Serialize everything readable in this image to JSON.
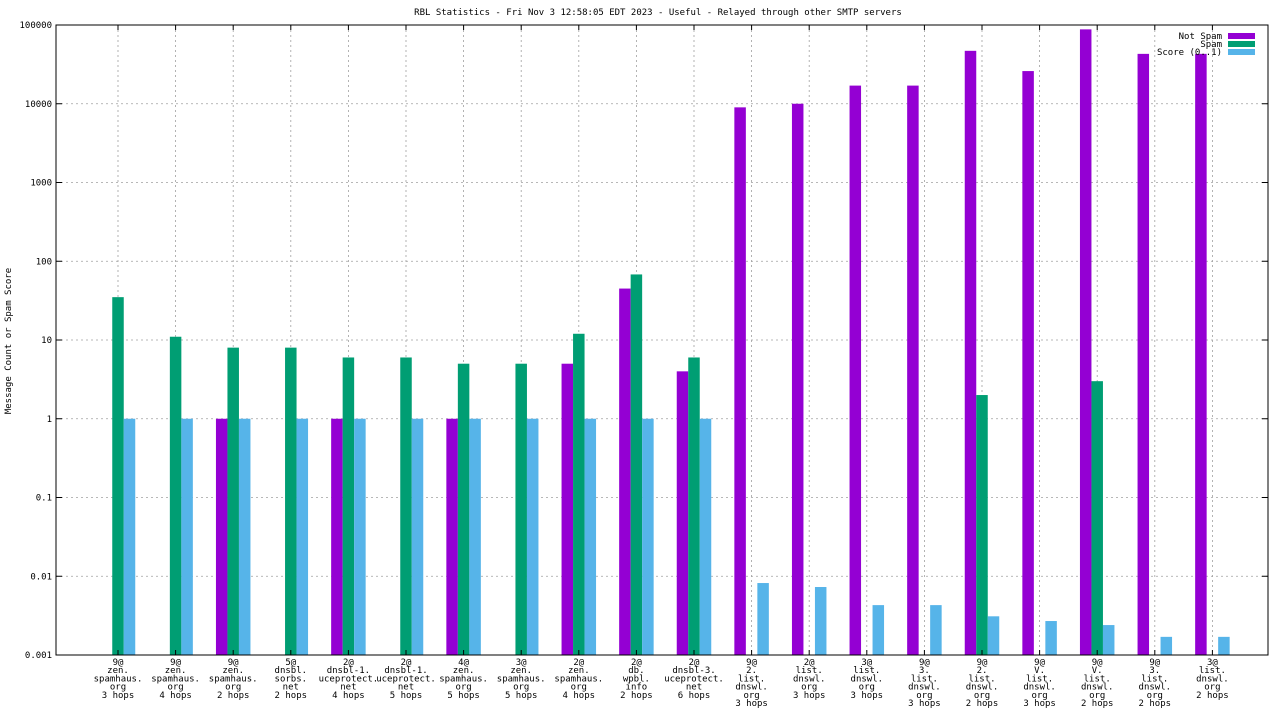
{
  "chart_data": {
    "type": "bar",
    "title": "RBL Statistics - Fri Nov  3 12:58:05 EDT 2023 - Useful - Relayed through other SMTP servers",
    "ylabel": "Message Count or Spam Score",
    "yscale": "log",
    "ylim": [
      0.001,
      100000
    ],
    "yticks": [
      "0.001",
      "0.01",
      "0.1",
      "1",
      "10",
      "100",
      "1000",
      "10000",
      "100000"
    ],
    "grid": true,
    "legend_position": "top-right",
    "categories": [
      [
        "9@",
        "zen.",
        "spamhaus.",
        "org",
        "3 hops"
      ],
      [
        "9@",
        "zen.",
        "spamhaus.",
        "org",
        "4 hops"
      ],
      [
        "9@",
        "zen.",
        "spamhaus.",
        "org",
        "2 hops"
      ],
      [
        "5@",
        "dnsbl.",
        "sorbs.",
        "net",
        "2 hops"
      ],
      [
        "2@",
        "dnsbl-1.",
        "uceprotect.",
        "net",
        "4 hops"
      ],
      [
        "2@",
        "dnsbl-1.",
        "uceprotect.",
        "net",
        "5 hops"
      ],
      [
        "4@",
        "zen.",
        "spamhaus.",
        "org",
        "5 hops"
      ],
      [
        "3@",
        "zen.",
        "spamhaus.",
        "org",
        "5 hops"
      ],
      [
        "2@",
        "zen.",
        "spamhaus.",
        "org",
        "4 hops"
      ],
      [
        "2@",
        "db.",
        "wpbl.",
        "info",
        "2 hops"
      ],
      [
        "2@",
        "dnsbl-3.",
        "uceprotect.",
        "net",
        "6 hops"
      ],
      [
        "9@",
        "2.",
        "list.",
        "dnswl.",
        "org",
        "3 hops"
      ],
      [
        "2@",
        "list.",
        "dnswl.",
        "org",
        "3 hops"
      ],
      [
        "3@",
        "list.",
        "dnswl.",
        "org",
        "3 hops"
      ],
      [
        "9@",
        "3.",
        "list.",
        "dnswl.",
        "org",
        "3 hops"
      ],
      [
        "9@",
        "2.",
        "list.",
        "dnswl.",
        "org",
        "2 hops"
      ],
      [
        "9@",
        "V.",
        "list.",
        "dnswl.",
        "org",
        "3 hops"
      ],
      [
        "9@",
        "V.",
        "list.",
        "dnswl.",
        "org",
        "2 hops"
      ],
      [
        "9@",
        "3.",
        "list.",
        "dnswl.",
        "org",
        "2 hops"
      ],
      [
        "3@",
        "list.",
        "dnswl.",
        "org",
        "2 hops"
      ]
    ],
    "series": [
      {
        "name": "Not Spam",
        "color": "#9400d3",
        "values": [
          null,
          null,
          1,
          null,
          1,
          null,
          1,
          null,
          5,
          45,
          4,
          9000,
          10000,
          17000,
          17000,
          47000,
          26000,
          88000,
          43000,
          43000
        ]
      },
      {
        "name": "Spam",
        "color": "#009e73",
        "values": [
          35,
          11,
          8,
          8,
          6,
          6,
          5,
          5,
          12,
          68,
          6,
          null,
          null,
          null,
          null,
          2,
          null,
          3,
          null,
          null
        ]
      },
      {
        "name": "Score (0..1)",
        "color": "#56b4e9",
        "values": [
          1,
          1,
          1,
          1,
          1,
          1,
          1,
          1,
          1,
          1,
          1,
          0.0082,
          0.0073,
          0.0043,
          0.0043,
          0.0031,
          0.0027,
          0.0024,
          0.0017,
          0.0017
        ]
      }
    ]
  }
}
